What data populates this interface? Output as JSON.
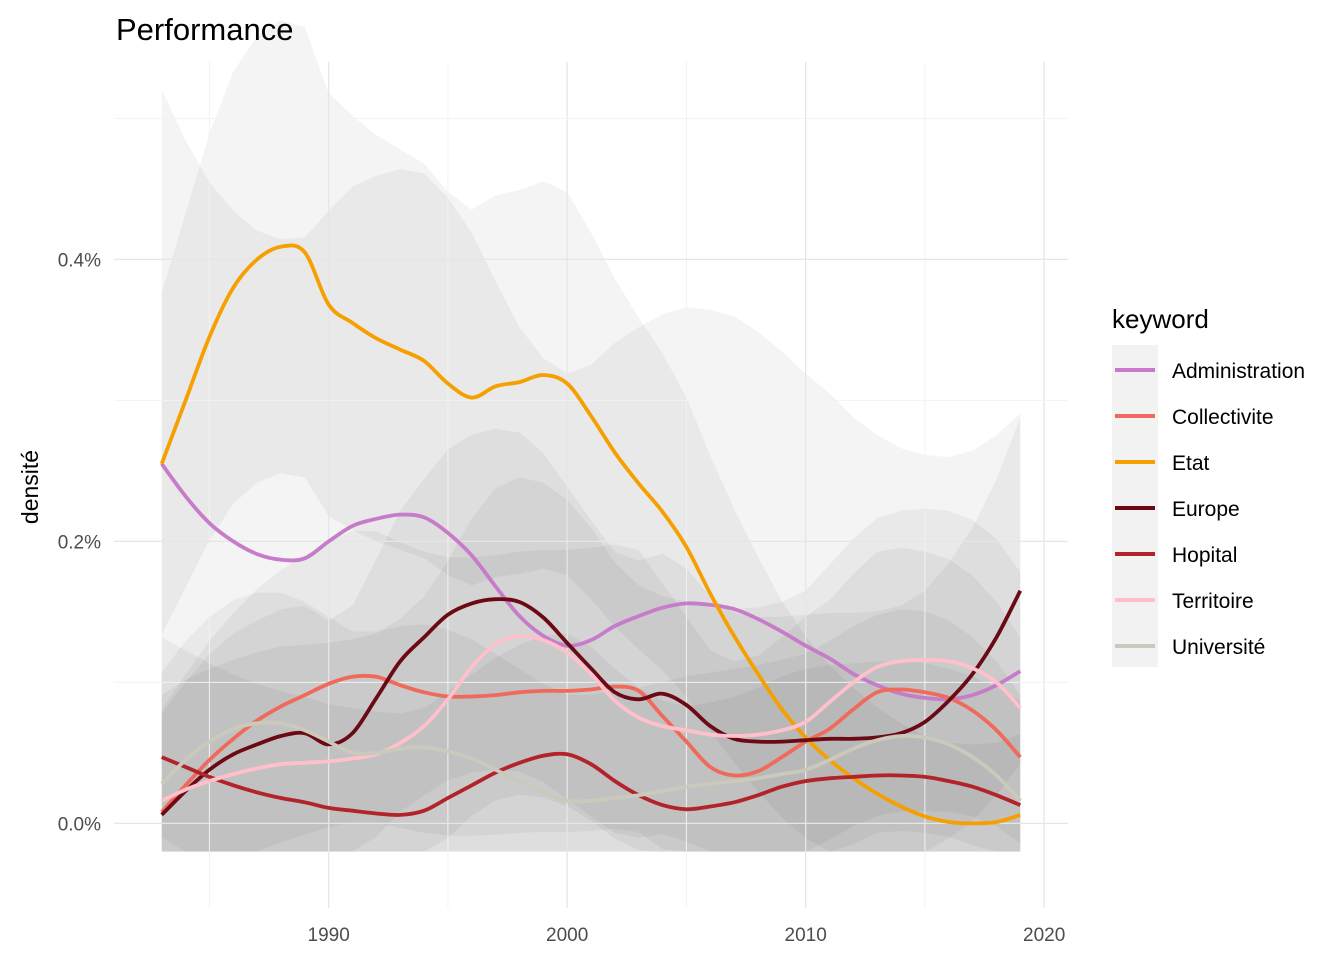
{
  "chart_data": {
    "type": "line",
    "title": "Performance",
    "xlabel": "",
    "ylabel": "densité",
    "xlim": [
      1981,
      2021
    ],
    "ylim": [
      -0.0006,
      0.0054
    ],
    "x_ticks": [
      1990,
      2000,
      2010,
      2020
    ],
    "x_tick_labels": [
      "1990",
      "2000",
      "2010",
      "2020"
    ],
    "y_ticks": [
      0.0,
      0.002,
      0.004
    ],
    "y_tick_labels": [
      "0.0%",
      "0.2%",
      "0.4%"
    ],
    "grid": true,
    "confidence_bands": true,
    "legend": {
      "title": "keyword",
      "position": "right"
    },
    "series": [
      {
        "name": "Administration",
        "color": "#c77cca",
        "x": [
          1983,
          1984,
          1985,
          1986,
          1987,
          1988,
          1989,
          1990,
          1991,
          1992,
          1993,
          1994,
          1995,
          1996,
          1997,
          1998,
          1999,
          2000,
          2001,
          2002,
          2003,
          2004,
          2005,
          2006,
          2007,
          2008,
          2009,
          2010,
          2011,
          2012,
          2013,
          2014,
          2015,
          2016,
          2017,
          2018,
          2019
        ],
        "y": [
          0.00255,
          0.00232,
          0.00213,
          0.002,
          0.00191,
          0.00187,
          0.00188,
          0.002,
          0.00211,
          0.00216,
          0.00219,
          0.00217,
          0.00206,
          0.0019,
          0.00168,
          0.00147,
          0.00133,
          0.00126,
          0.0013,
          0.0014,
          0.00147,
          0.00153,
          0.00156,
          0.00155,
          0.00152,
          0.00145,
          0.00136,
          0.00126,
          0.00117,
          0.00106,
          0.00098,
          0.00092,
          0.00089,
          0.00088,
          0.00091,
          0.00098,
          0.00108
        ]
      },
      {
        "name": "Collectivite",
        "color": "#ef6a5a",
        "x": [
          1983,
          1984,
          1985,
          1986,
          1987,
          1988,
          1989,
          1990,
          1991,
          1992,
          1993,
          1994,
          1995,
          1996,
          1997,
          1998,
          1999,
          2000,
          2001,
          2002,
          2003,
          2004,
          2005,
          2006,
          2007,
          2008,
          2009,
          2010,
          2011,
          2012,
          2013,
          2014,
          2015,
          2016,
          2017,
          2018,
          2019
        ],
        "y": [
          8e-05,
          0.00027,
          0.00045,
          0.0006,
          0.00073,
          0.00083,
          0.00091,
          0.00099,
          0.00104,
          0.00104,
          0.00098,
          0.00093,
          0.0009,
          0.0009,
          0.00091,
          0.00093,
          0.00094,
          0.00094,
          0.00095,
          0.00097,
          0.00094,
          0.00076,
          0.00058,
          0.0004,
          0.00034,
          0.00037,
          0.00047,
          0.00058,
          0.00067,
          0.00081,
          0.00093,
          0.00095,
          0.00093,
          0.00089,
          0.0008,
          0.00066,
          0.00047
        ]
      },
      {
        "name": "Etat",
        "color": "#f5a000",
        "x": [
          1983,
          1984,
          1985,
          1986,
          1987,
          1988,
          1989,
          1990,
          1991,
          1992,
          1993,
          1994,
          1995,
          1996,
          1997,
          1998,
          1999,
          2000,
          2001,
          2002,
          2003,
          2004,
          2005,
          2006,
          2007,
          2008,
          2009,
          2010,
          2011,
          2012,
          2013,
          2014,
          2015,
          2016,
          2017,
          2018,
          2019
        ],
        "y": [
          0.00255,
          0.003,
          0.00345,
          0.0038,
          0.004,
          0.00409,
          0.00405,
          0.00368,
          0.00355,
          0.00344,
          0.00336,
          0.00328,
          0.00312,
          0.00302,
          0.0031,
          0.00313,
          0.00318,
          0.00312,
          0.00289,
          0.00263,
          0.00241,
          0.00221,
          0.00196,
          0.00163,
          0.00133,
          0.00106,
          0.00081,
          0.00061,
          0.00045,
          0.00032,
          0.00021,
          0.00012,
          5e-05,
          1e-05,
          0.0,
          1e-05,
          6e-05
        ]
      },
      {
        "name": "Europe",
        "color": "#6b0a14",
        "x": [
          1983,
          1984,
          1985,
          1986,
          1987,
          1988,
          1989,
          1990,
          1991,
          1992,
          1993,
          1994,
          1995,
          1996,
          1997,
          1998,
          1999,
          2000,
          2001,
          2002,
          2003,
          2004,
          2005,
          2006,
          2007,
          2008,
          2009,
          2010,
          2011,
          2012,
          2013,
          2014,
          2015,
          2016,
          2017,
          2018,
          2019
        ],
        "y": [
          6e-05,
          0.00023,
          0.00038,
          0.00049,
          0.00056,
          0.00062,
          0.00064,
          0.00056,
          0.00064,
          0.00089,
          0.00115,
          0.00132,
          0.00148,
          0.00156,
          0.00159,
          0.00157,
          0.00146,
          0.00128,
          0.0011,
          0.00093,
          0.00088,
          0.00092,
          0.00084,
          0.00069,
          0.0006,
          0.00058,
          0.00058,
          0.00059,
          0.0006,
          0.0006,
          0.00061,
          0.00064,
          0.00072,
          0.00087,
          0.00106,
          0.00132,
          0.00165
        ]
      },
      {
        "name": "Hopital",
        "color": "#b2232a",
        "x": [
          1983,
          1984,
          1985,
          1986,
          1987,
          1988,
          1989,
          1990,
          1991,
          1992,
          1993,
          1994,
          1995,
          1996,
          1997,
          1998,
          1999,
          2000,
          2001,
          2002,
          2003,
          2004,
          2005,
          2006,
          2007,
          2008,
          2009,
          2010,
          2011,
          2012,
          2013,
          2014,
          2015,
          2016,
          2017,
          2018,
          2019
        ],
        "y": [
          0.00047,
          0.0004,
          0.00033,
          0.00027,
          0.00022,
          0.00018,
          0.00015,
          0.00011,
          9e-05,
          7e-05,
          6e-05,
          9e-05,
          0.00018,
          0.00027,
          0.00036,
          0.00043,
          0.00048,
          0.00049,
          0.00042,
          0.0003,
          0.0002,
          0.00013,
          0.0001,
          0.00012,
          0.00015,
          0.0002,
          0.00026,
          0.0003,
          0.00032,
          0.00033,
          0.00034,
          0.00034,
          0.00033,
          0.0003,
          0.00026,
          0.0002,
          0.00013
        ]
      },
      {
        "name": "Territoire",
        "color": "#ffc0cb",
        "x": [
          1983,
          1984,
          1985,
          1986,
          1987,
          1988,
          1989,
          1990,
          1991,
          1992,
          1993,
          1994,
          1995,
          1996,
          1997,
          1998,
          1999,
          2000,
          2001,
          2002,
          2003,
          2004,
          2005,
          2006,
          2007,
          2008,
          2009,
          2010,
          2011,
          2012,
          2013,
          2014,
          2015,
          2016,
          2017,
          2018,
          2019
        ],
        "y": [
          0.00016,
          0.00024,
          0.0003,
          0.00035,
          0.00039,
          0.00042,
          0.00043,
          0.00044,
          0.00046,
          0.00049,
          0.00057,
          0.00069,
          0.00088,
          0.00111,
          0.00127,
          0.00133,
          0.0013,
          0.00121,
          0.00106,
          0.00087,
          0.00075,
          0.00069,
          0.00066,
          0.00063,
          0.00062,
          0.00063,
          0.00066,
          0.00072,
          0.00086,
          0.001,
          0.00111,
          0.00115,
          0.00116,
          0.00115,
          0.0011,
          0.001,
          0.00082
        ]
      },
      {
        "name": "Université",
        "color": "#cbc9bb",
        "x": [
          1983,
          1984,
          1985,
          1986,
          1987,
          1988,
          1989,
          1990,
          1991,
          1992,
          1993,
          1994,
          1995,
          1996,
          1997,
          1998,
          1999,
          2000,
          2001,
          2002,
          2003,
          2004,
          2005,
          2006,
          2007,
          2008,
          2009,
          2010,
          2011,
          2012,
          2013,
          2014,
          2015,
          2016,
          2017,
          2018,
          2019
        ],
        "y": [
          0.00028,
          0.00045,
          0.00058,
          0.00067,
          0.00071,
          0.00071,
          0.00066,
          0.00058,
          0.0005,
          0.0005,
          0.00053,
          0.00054,
          0.00051,
          0.00046,
          0.00038,
          0.0003,
          0.00022,
          0.00016,
          0.00016,
          0.00018,
          0.0002,
          0.00023,
          0.00026,
          0.00028,
          0.0003,
          0.00032,
          0.00035,
          0.00038,
          0.00045,
          0.00053,
          0.00059,
          0.00062,
          0.00061,
          0.00056,
          0.00047,
          0.00034,
          0.00016
        ]
      }
    ]
  }
}
